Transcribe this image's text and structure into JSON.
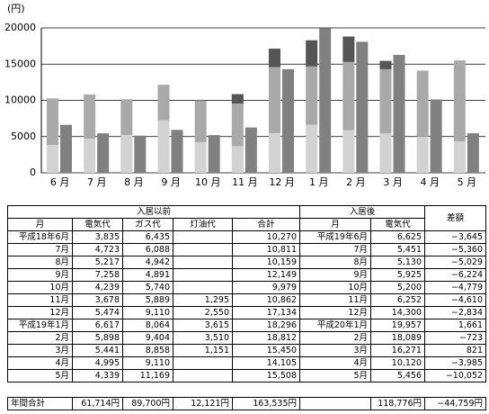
{
  "chart_data": {
    "type": "bar",
    "y_unit_label": "(円)",
    "categories": [
      "6 月",
      "7 月",
      "8 月",
      "9 月",
      "10 月",
      "11 月",
      "12 月",
      "1 月",
      "2 月",
      "3 月",
      "4 月",
      "5 月"
    ],
    "series": [
      {
        "color": "#d2d2d2",
        "stack": "before",
        "values": [
          3835,
          4723,
          5217,
          7258,
          4239,
          3678,
          5474,
          6617,
          5898,
          5441,
          4995,
          4339
        ]
      },
      {
        "color": "#a9a9a9",
        "stack": "before",
        "values": [
          6435,
          6088,
          4942,
          4891,
          5740,
          5889,
          9110,
          8064,
          9404,
          8858,
          9110,
          11169
        ]
      },
      {
        "color": "#555555",
        "stack": "before",
        "values": [
          null,
          null,
          null,
          null,
          null,
          1295,
          2550,
          3615,
          3510,
          1151,
          null,
          null
        ]
      },
      {
        "color": "#808080",
        "stack": "after",
        "values": [
          6625,
          5451,
          5130,
          5925,
          5200,
          6252,
          14300,
          19957,
          18089,
          16271,
          10120,
          5456
        ]
      }
    ],
    "ylim": [
      0,
      20000
    ],
    "yticks": [
      0,
      5000,
      10000,
      15000,
      20000
    ],
    "grid": true
  },
  "table": {
    "group_headers": [
      "入居以前",
      "入居後",
      "差額"
    ],
    "headers": [
      "月",
      "電気代",
      "ガス代",
      "灯油代",
      "合計",
      "月",
      "電気代"
    ],
    "rows": [
      [
        "平成18年6月",
        "3,835",
        "6,435",
        null,
        "10,270",
        "平成19年6月",
        "6,625",
        "−3,645"
      ],
      [
        "7月",
        "4,723",
        "6,088",
        null,
        "10,811",
        "7月",
        "5,451",
        "−5,360"
      ],
      [
        "8月",
        "5,217",
        "4,942",
        null,
        "10,159",
        "8月",
        "5,130",
        "−5,029"
      ],
      [
        "9月",
        "7,258",
        "4,891",
        null,
        "12,149",
        "9月",
        "5,925",
        "−6,224"
      ],
      [
        "10月",
        "4,239",
        "5,740",
        null,
        "9,979",
        "10月",
        "5,200",
        "−4,779"
      ],
      [
        "11月",
        "3,678",
        "5,889",
        "1,295",
        "10,862",
        "11月",
        "6,252",
        "−4,610"
      ],
      [
        "12月",
        "5,474",
        "9,110",
        "2,550",
        "17,134",
        "12月",
        "14,300",
        "−2,834"
      ],
      [
        "平成19年1月",
        "6,617",
        "8,064",
        "3,615",
        "18,296",
        "平成20年1月",
        "19,957",
        "1,661"
      ],
      [
        "2月",
        "5,898",
        "9,404",
        "3,510",
        "18,812",
        "2月",
        "18,089",
        "−723"
      ],
      [
        "3月",
        "5,441",
        "8,858",
        "1,151",
        "15,450",
        "3月",
        "16,271",
        "821"
      ],
      [
        "4月",
        "4,995",
        "9,110",
        null,
        "14,105",
        "4月",
        "10,120",
        "−3,985"
      ],
      [
        "5月",
        "4,339",
        "11,169",
        null,
        "15,508",
        "5月",
        "5,456",
        "−10,052"
      ]
    ],
    "footer": [
      "年間合計",
      "61,714円",
      "89,700円",
      "12,121円",
      "163,535円",
      null,
      "118,776円",
      "−44,759円"
    ]
  }
}
